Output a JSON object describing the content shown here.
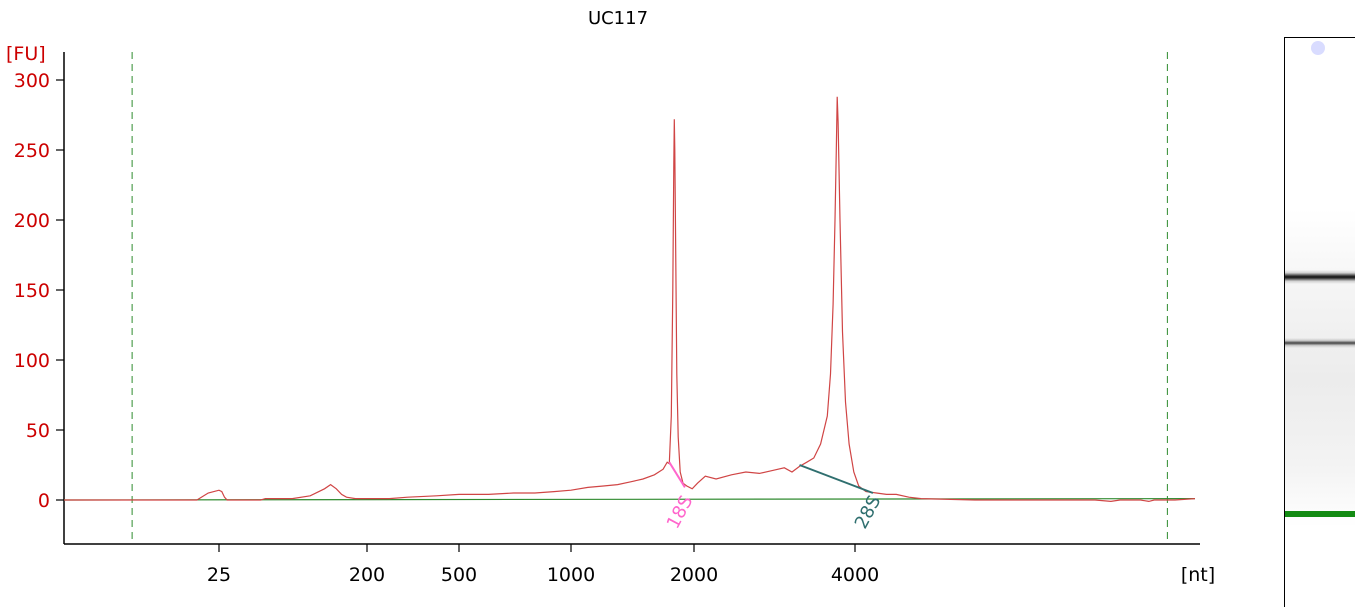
{
  "chart_data": {
    "type": "line",
    "title": "UC117",
    "ylabel": "[FU]",
    "xlabel": "[nt]",
    "ylim": [
      -30,
      320
    ],
    "yticks": [
      0,
      50,
      100,
      150,
      200,
      250,
      300
    ],
    "xticks": [
      "25",
      "200",
      "500",
      "1000",
      "2000",
      "4000"
    ],
    "series": [
      {
        "values": [
          [
            17,
            0
          ],
          [
            21,
            0
          ],
          [
            22,
            0
          ],
          [
            23,
            0
          ],
          [
            24,
            5
          ],
          [
            25,
            7
          ],
          [
            26,
            6
          ],
          [
            27,
            2
          ],
          [
            28,
            0
          ],
          [
            35,
            0
          ],
          [
            45,
            0
          ],
          [
            48,
            1
          ],
          [
            70,
            1
          ],
          [
            90,
            3
          ],
          [
            110,
            8
          ],
          [
            120,
            11
          ],
          [
            130,
            8
          ],
          [
            140,
            4
          ],
          [
            150,
            2
          ],
          [
            170,
            1
          ],
          [
            200,
            1
          ],
          [
            250,
            1
          ],
          [
            300,
            2
          ],
          [
            400,
            3
          ],
          [
            500,
            4
          ],
          [
            600,
            4
          ],
          [
            700,
            5
          ],
          [
            800,
            5
          ],
          [
            900,
            6
          ],
          [
            1000,
            7
          ],
          [
            1100,
            9
          ],
          [
            1200,
            10
          ],
          [
            1300,
            11
          ],
          [
            1400,
            13
          ],
          [
            1500,
            15
          ],
          [
            1600,
            18
          ],
          [
            1680,
            22
          ],
          [
            1720,
            27
          ],
          [
            1740,
            26
          ],
          [
            1760,
            60
          ],
          [
            1775,
            150
          ],
          [
            1785,
            240
          ],
          [
            1790,
            272
          ],
          [
            1795,
            250
          ],
          [
            1805,
            170
          ],
          [
            1815,
            90
          ],
          [
            1830,
            45
          ],
          [
            1850,
            20
          ],
          [
            1880,
            12
          ],
          [
            1920,
            10
          ],
          [
            1980,
            8
          ],
          [
            2030,
            12
          ],
          [
            2100,
            17
          ],
          [
            2200,
            15
          ],
          [
            2350,
            18
          ],
          [
            2500,
            20
          ],
          [
            2650,
            19
          ],
          [
            2800,
            21
          ],
          [
            2950,
            23
          ],
          [
            3050,
            20
          ],
          [
            3150,
            24
          ],
          [
            3250,
            27
          ],
          [
            3350,
            30
          ],
          [
            3450,
            40
          ],
          [
            3550,
            60
          ],
          [
            3600,
            90
          ],
          [
            3640,
            140
          ],
          [
            3670,
            200
          ],
          [
            3690,
            250
          ],
          [
            3705,
            288
          ],
          [
            3720,
            270
          ],
          [
            3750,
            200
          ],
          [
            3790,
            120
          ],
          [
            3840,
            70
          ],
          [
            3900,
            40
          ],
          [
            3980,
            20
          ],
          [
            4050,
            10
          ],
          [
            4150,
            6
          ],
          [
            4300,
            5
          ],
          [
            4450,
            4
          ],
          [
            4600,
            4
          ],
          [
            4800,
            2
          ],
          [
            5000,
            1
          ],
          [
            6000,
            0
          ],
          [
            8000,
            0
          ],
          [
            9000,
            0
          ],
          [
            9500,
            -1
          ],
          [
            9800,
            0
          ],
          [
            10500,
            0
          ],
          [
            10800,
            -1
          ],
          [
            11000,
            0
          ],
          [
            11800,
            0
          ]
        ]
      }
    ],
    "baseline": [
      [
        17,
        0
      ],
      [
        11800,
        1
      ]
    ],
    "peaks": [
      {
        "label": "18S",
        "from": [
          1740,
          27
        ],
        "to": [
          1900,
          9
        ],
        "color": "#ff66cc"
      },
      {
        "label": "28S",
        "from": [
          3150,
          25
        ],
        "to": [
          4250,
          5
        ],
        "color": "#2f6f6f"
      }
    ],
    "markers": [
      18,
      11500
    ],
    "grid": false,
    "colors": {
      "axis_red": "#cc0000",
      "trace": "#d04545",
      "baseline": "#2f8a2f",
      "marker": "#2e8b2e"
    },
    "gel_image": {
      "bands": [
        {
          "position": 0.42,
          "color": "#222222",
          "weight": "strong"
        },
        {
          "position": 0.535,
          "color": "#444444",
          "weight": "medium"
        },
        {
          "position": 0.835,
          "color": "#138b13",
          "weight": "marker"
        }
      ]
    }
  }
}
